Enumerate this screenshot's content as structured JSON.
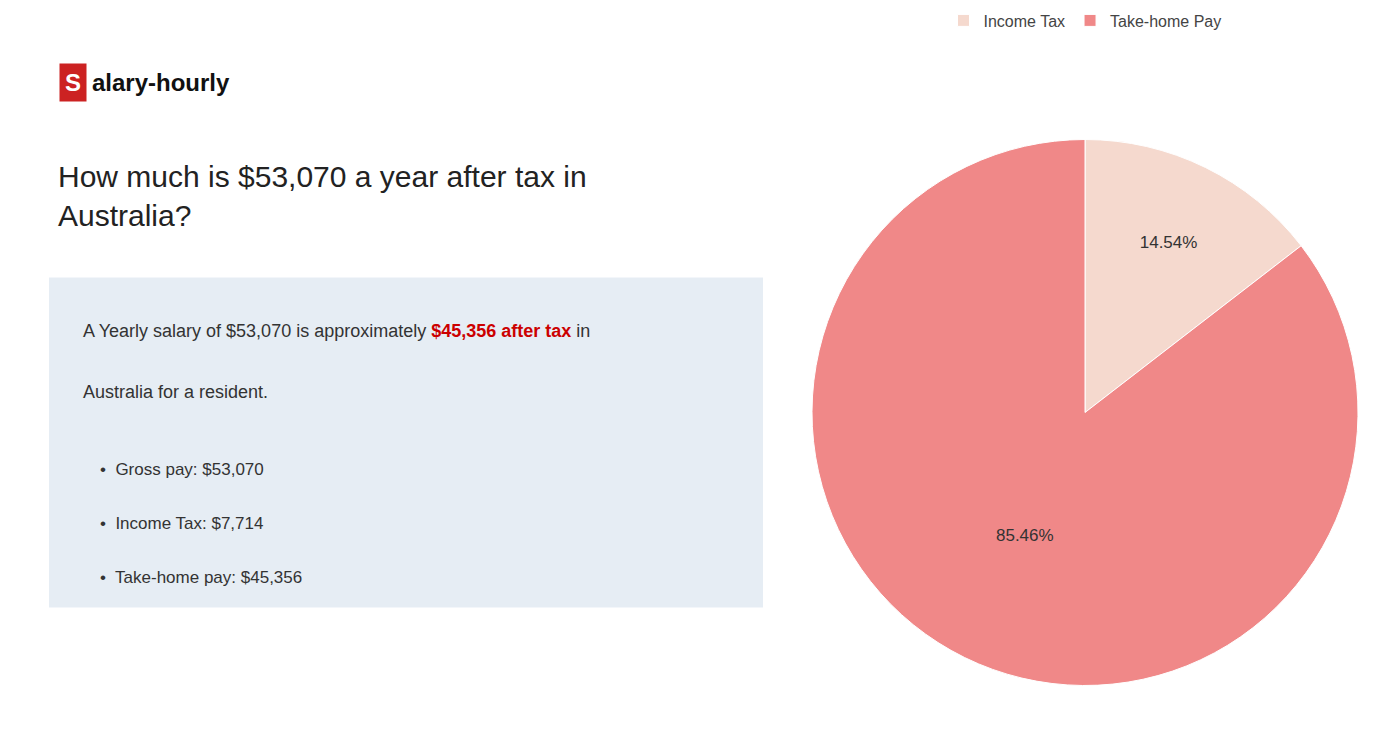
{
  "chart_data": {
    "type": "pie",
    "title": "How much is $53,070 a year after tax in\nAustralia?",
    "annotations": [
      [
        {
          "text": "S",
          "color": "#cc2222"
        },
        {
          "text": "alary-hourly"
        }
      ],
      [
        {
          "text": "A Yearly salary of $53,070 is approximately "
        },
        {
          "text": "$45,356 after tax",
          "color": "#cc0000"
        },
        {
          "text": " in"
        }
      ],
      [
        {
          "text": "Australia for a resident."
        }
      ],
      [
        {
          "text": "•  Gross pay: $53,070"
        }
      ],
      [
        {
          "text": "•  Income Tax: $7,714"
        }
      ],
      [
        {
          "text": "•  Take-home pay: $45,356"
        }
      ]
    ],
    "categories": [
      "Income Tax",
      "Take-home Pay"
    ],
    "values": [
      14.54,
      85.46
    ],
    "value_labels": [
      "14.54%",
      "85.46%"
    ],
    "colors": [
      "#f5d9ce",
      "#f08888"
    ],
    "data_labels": true,
    "legend": "top"
  }
}
